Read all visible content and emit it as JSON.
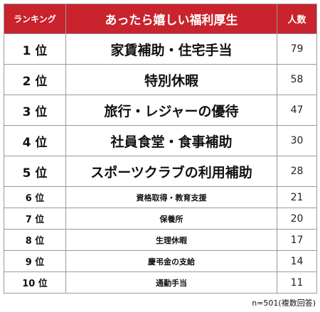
{
  "chart_data": {
    "type": "table",
    "columns": [
      "ランキング",
      "あったら嬉しい福利厚生",
      "人数"
    ],
    "rows": [
      {
        "rank": "1 位",
        "item": "家賃補助・住宅手当",
        "count": 79
      },
      {
        "rank": "2 位",
        "item": "特別休暇",
        "count": 58
      },
      {
        "rank": "3 位",
        "item": "旅行・レジャーの優待",
        "count": 47
      },
      {
        "rank": "4 位",
        "item": "社員食堂・食事補助",
        "count": 30
      },
      {
        "rank": "5 位",
        "item": "スポーツクラブの利用補助",
        "count": 28
      },
      {
        "rank": "6 位",
        "item": "資格取得・教育支援",
        "count": 21
      },
      {
        "rank": "7 位",
        "item": "保養所",
        "count": 20
      },
      {
        "rank": "8 位",
        "item": "生理休暇",
        "count": 17
      },
      {
        "rank": "9 位",
        "item": "慶弔金の支給",
        "count": 14
      },
      {
        "rank": "10 位",
        "item": "通勤手当",
        "count": 11
      }
    ],
    "note": "n=501(複数回答)",
    "header_color": "#c9232d"
  }
}
